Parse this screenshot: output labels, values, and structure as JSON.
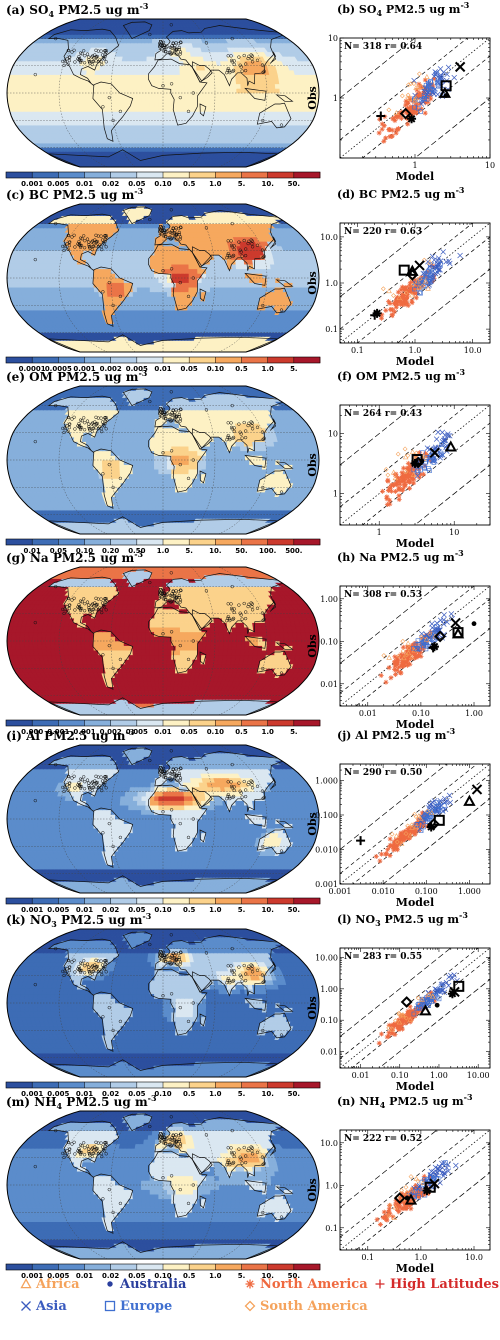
{
  "figure": {
    "map_panels": [
      {
        "title": "(a) SO",
        "sub": "4",
        "rest": " PM2.5 ug m",
        "sup": "-3",
        "field": "so4",
        "colorbar": [
          "0.001",
          "0.005",
          "0.01",
          "0.02",
          "0.05",
          "0.10",
          "0.5",
          "1.0",
          "5.",
          "10.",
          "50."
        ]
      },
      {
        "title": "(c) BC PM2.5 ug m",
        "sub": "",
        "rest": "",
        "sup": "-3",
        "field": "bc",
        "colorbar": [
          "0.0001",
          "0.0005",
          "0.001",
          "0.002",
          "0.005",
          "0.01",
          "0.05",
          "0.10",
          "0.5",
          "1.0",
          "5."
        ]
      },
      {
        "title": "(e) OM PM2.5 ug m",
        "sub": "",
        "rest": "",
        "sup": "-3",
        "field": "om",
        "colorbar": [
          "0.01",
          "0.05",
          "0.10",
          "0.20",
          "0.50",
          "1.0",
          "5.",
          "10.",
          "50.",
          "100.",
          "500."
        ]
      },
      {
        "title": "(g) Na PM2.5 ug m",
        "sub": "",
        "rest": "",
        "sup": "-3",
        "field": "na",
        "colorbar": [
          "0.000",
          "0.001",
          "0.001",
          "0.002",
          "0.005",
          "0.01",
          "0.05",
          "0.10",
          "0.5",
          "1.0",
          "5."
        ]
      },
      {
        "title": "(i) Al PM2.5 ug m",
        "sub": "",
        "rest": "",
        "sup": "-3",
        "field": "al",
        "colorbar": [
          "0.001",
          "0.005",
          "0.01",
          "0.02",
          "0.05",
          "0.10",
          "0.5",
          "1.0",
          "5.",
          "10.",
          "50."
        ]
      },
      {
        "title": "(k) NO",
        "sub": "3",
        "rest": " PM2.5 ug m",
        "sup": "-3",
        "field": "no3",
        "colorbar": [
          "0.001",
          "0.005",
          "0.01",
          "0.02",
          "0.05",
          "0.10",
          "0.5",
          "1.0",
          "5.",
          "10.",
          "50."
        ]
      },
      {
        "title": "(m) NH",
        "sub": "4",
        "rest": " PM2.5 ug m",
        "sup": "-3",
        "field": "nh4",
        "colorbar": [
          "0.001",
          "0.005",
          "0.01",
          "0.02",
          "0.05",
          "0.10",
          "0.5",
          "1.0",
          "5.",
          "10.",
          "50."
        ]
      }
    ],
    "colorbar_colors": [
      "#2c4f9e",
      "#3d6cb5",
      "#5b8ccb",
      "#86afdb",
      "#b1cce7",
      "#dae7f1",
      "#fdf1c4",
      "#fbd28b",
      "#f6a85e",
      "#ea7447",
      "#cc3a2d",
      "#a7172a"
    ],
    "legend": [
      {
        "label": "Africa",
        "marker": "triangle",
        "color": "#f5a35c"
      },
      {
        "label": "Asia",
        "marker": "x",
        "color": "#3a5bbf"
      },
      {
        "label": "Australia",
        "marker": "dot",
        "color": "#2a3f9e"
      },
      {
        "label": "Europe",
        "marker": "square",
        "color": "#3f6fd0"
      },
      {
        "label": "North America",
        "marker": "asterisk",
        "color": "#ef6a40"
      },
      {
        "label": "South America",
        "marker": "diamond",
        "color": "#f5a35c"
      },
      {
        "label": "High Latitudes",
        "marker": "plus",
        "color": "#d42a2a"
      }
    ]
  },
  "chart_data": [
    {
      "type": "scatter",
      "title": "(b) SO4 PM2.5 ug m-3",
      "annotation": "N= 318 r= 0.64",
      "xlabel": "Model",
      "ylabel": "Obs",
      "log": true,
      "xlim": [
        0.1,
        10
      ],
      "ylim": [
        0.1,
        10
      ],
      "xticks": [
        "1",
        "10"
      ],
      "yticks": [
        "1",
        "10"
      ],
      "means": [
        {
          "region": "Asia",
          "x": 4.0,
          "y": 3.3
        },
        {
          "region": "Europe",
          "x": 2.6,
          "y": 1.6
        },
        {
          "region": "Africa",
          "x": 2.5,
          "y": 1.2
        },
        {
          "region": "Australia",
          "x": 2.6,
          "y": 1.1
        },
        {
          "region": "South America",
          "x": 0.75,
          "y": 0.55
        },
        {
          "region": "North America",
          "x": 0.9,
          "y": 0.45
        },
        {
          "region": "High Latitudes",
          "x": 0.35,
          "y": 0.5
        }
      ]
    },
    {
      "type": "scatter",
      "title": "(d) BC PM2.5 ug m-3",
      "annotation": "N= 220 r= 0.63",
      "xlabel": "Model",
      "ylabel": "Obs",
      "log": true,
      "xlim": [
        0.05,
        20
      ],
      "ylim": [
        0.05,
        20
      ],
      "xticks": [
        "0.1",
        "1.0",
        "10.0"
      ],
      "yticks": [
        "0.1",
        "1.0",
        "10.0"
      ],
      "means": [
        {
          "region": "Asia",
          "x": 1.2,
          "y": 2.4
        },
        {
          "region": "Europe",
          "x": 0.65,
          "y": 1.9
        },
        {
          "region": "Africa",
          "x": 0.9,
          "y": 1.8
        },
        {
          "region": "South America",
          "x": 0.9,
          "y": 1.5
        },
        {
          "region": "Australia",
          "x": 0.8,
          "y": 1.6
        },
        {
          "region": "North America",
          "x": 0.22,
          "y": 0.22
        },
        {
          "region": "High Latitudes",
          "x": 0.2,
          "y": 0.2
        }
      ]
    },
    {
      "type": "scatter",
      "title": "(f) OM PM2.5 ug m-3",
      "annotation": "N= 264 r= 0.43",
      "xlabel": "Model",
      "ylabel": "Obs",
      "log": true,
      "xlim": [
        0.3,
        30
      ],
      "ylim": [
        0.3,
        30
      ],
      "xticks": [
        "1",
        "10"
      ],
      "yticks": [
        "1",
        "10"
      ],
      "means": [
        {
          "region": "Africa",
          "x": 9,
          "y": 6
        },
        {
          "region": "Asia",
          "x": 5.5,
          "y": 4.8
        },
        {
          "region": "Europe",
          "x": 3.2,
          "y": 3.7
        },
        {
          "region": "Australia",
          "x": 3.7,
          "y": 3.5
        },
        {
          "region": "South America",
          "x": 3.3,
          "y": 3.3
        },
        {
          "region": "North America",
          "x": 3.0,
          "y": 3.2
        }
      ]
    },
    {
      "type": "scatter",
      "title": "(h) Na PM2.5 ug m-3",
      "annotation": "N= 308 r= 0.53",
      "xlabel": "Model",
      "ylabel": "Obs",
      "log": true,
      "xlim": [
        0.003,
        2
      ],
      "ylim": [
        0.003,
        2
      ],
      "xticks": [
        "0.01",
        "0.10",
        "1.00"
      ],
      "yticks": [
        "0.01",
        "0.10",
        "1.00"
      ],
      "means": [
        {
          "region": "Australia",
          "x": 1.0,
          "y": 0.26
        },
        {
          "region": "Asia",
          "x": 0.45,
          "y": 0.27
        },
        {
          "region": "Europe",
          "x": 0.5,
          "y": 0.16
        },
        {
          "region": "Africa",
          "x": 0.5,
          "y": 0.15
        },
        {
          "region": "South America",
          "x": 0.23,
          "y": 0.13
        },
        {
          "region": "North America",
          "x": 0.18,
          "y": 0.075
        },
        {
          "region": "High Latitudes",
          "x": 0.17,
          "y": 0.07
        }
      ]
    },
    {
      "type": "scatter",
      "title": "(j) Al PM2.5 ug m-3",
      "annotation": "N= 290 r= 0.50",
      "xlabel": "Model",
      "ylabel": "Obs",
      "log": true,
      "xlim": [
        0.001,
        3
      ],
      "ylim": [
        0.001,
        3
      ],
      "xticks": [
        "0.001",
        "0.010",
        "0.100",
        "1.000"
      ],
      "yticks": [
        "0.001",
        "0.010",
        "0.100",
        "1.000"
      ],
      "means": [
        {
          "region": "Asia",
          "x": 1.5,
          "y": 0.55
        },
        {
          "region": "Africa",
          "x": 1.0,
          "y": 0.25
        },
        {
          "region": "Europe",
          "x": 0.2,
          "y": 0.07
        },
        {
          "region": "South America",
          "x": 0.15,
          "y": 0.055
        },
        {
          "region": "North America",
          "x": 0.13,
          "y": 0.045
        },
        {
          "region": "Australia",
          "x": 0.12,
          "y": 0.05
        },
        {
          "region": "High Latitudes",
          "x": 0.003,
          "y": 0.018
        }
      ]
    },
    {
      "type": "scatter",
      "title": "(l) NO3 PM2.5 ug m-3",
      "annotation": "N= 283 r= 0.55",
      "xlabel": "Model",
      "ylabel": "Obs",
      "log": true,
      "xlim": [
        0.003,
        20
      ],
      "ylim": [
        0.003,
        20
      ],
      "xticks": [
        "0.01",
        "0.10",
        "1.00",
        "10.00"
      ],
      "yticks": [
        "0.01",
        "0.10",
        "1.00",
        "10.00"
      ],
      "means": [
        {
          "region": "Europe",
          "x": 3.2,
          "y": 1.2
        },
        {
          "region": "Asia",
          "x": 2.5,
          "y": 0.8
        },
        {
          "region": "North America",
          "x": 2.2,
          "y": 0.7
        },
        {
          "region": "Australia",
          "x": 0.9,
          "y": 0.3
        },
        {
          "region": "Africa",
          "x": 0.45,
          "y": 0.2
        },
        {
          "region": "South America",
          "x": 0.15,
          "y": 0.38
        }
      ]
    },
    {
      "type": "scatter",
      "title": "(n) NH4 PM2.5 ug m-3",
      "annotation": "N= 222 r= 0.52",
      "xlabel": "Model",
      "ylabel": "Obs",
      "log": true,
      "xlim": [
        0.03,
        20
      ],
      "ylim": [
        0.03,
        20
      ],
      "xticks": [
        "0.1",
        "1.0",
        "10.0"
      ],
      "yticks": [
        "0.1",
        "1.0",
        "10.0"
      ],
      "means": [
        {
          "region": "Asia",
          "x": 1.8,
          "y": 1.1
        },
        {
          "region": "Europe",
          "x": 1.5,
          "y": 0.9
        },
        {
          "region": "North America",
          "x": 1.3,
          "y": 0.75
        },
        {
          "region": "Australia",
          "x": 0.55,
          "y": 0.5
        },
        {
          "region": "Africa",
          "x": 0.65,
          "y": 0.45
        },
        {
          "region": "South America",
          "x": 0.4,
          "y": 0.5
        }
      ]
    }
  ]
}
